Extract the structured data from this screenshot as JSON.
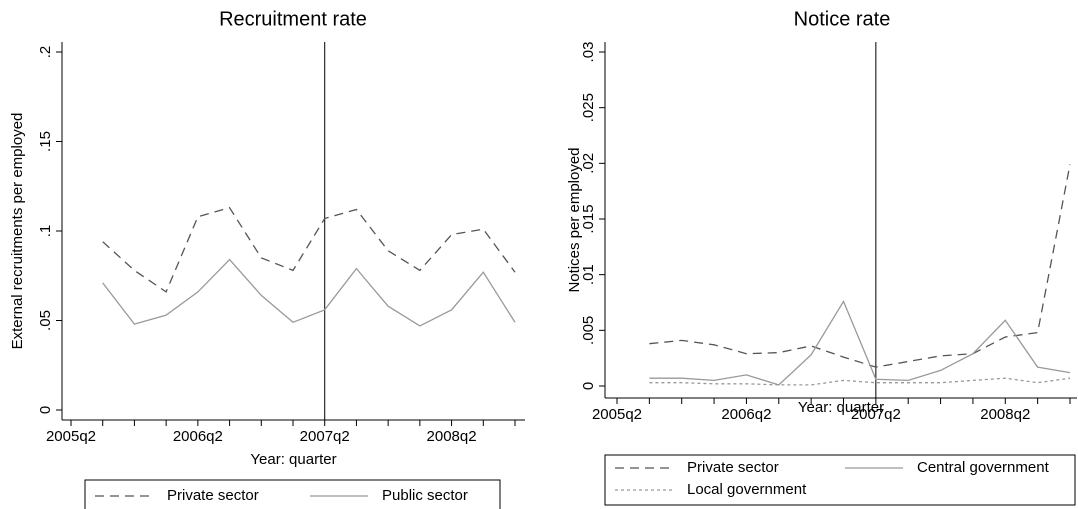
{
  "chart_data": [
    {
      "type": "line",
      "title": "Recruitment rate",
      "x_label": "Year: quarter",
      "y_label": "External recruitments per employed",
      "categories": [
        "2005q2",
        null,
        null,
        null,
        "2006q2",
        null,
        null,
        null,
        "2007q2",
        null,
        null,
        null,
        "2008q2",
        null,
        null
      ],
      "series": [
        {
          "name": "Private sector",
          "color": "#555555",
          "dash": "dashed",
          "values": [
            null,
            0.094,
            0.078,
            0.066,
            0.108,
            0.113,
            0.085,
            0.078,
            0.107,
            0.112,
            0.089,
            0.078,
            0.098,
            0.101,
            0.077
          ]
        },
        {
          "name": "Public sector",
          "color": "#999999",
          "dash": "solid",
          "values": [
            null,
            0.071,
            0.048,
            0.053,
            0.066,
            0.084,
            0.064,
            0.049,
            0.056,
            0.079,
            0.058,
            0.047,
            0.056,
            0.077,
            0.049
          ]
        }
      ],
      "ylim": [
        0,
        0.2
      ],
      "yticks": [
        0,
        {
          "value": 0.05,
          "label": ".05"
        },
        {
          "value": 0.1,
          "label": ".1"
        },
        {
          "value": 0.15,
          "label": ".15"
        },
        {
          "value": 0.2,
          "label": ".2"
        }
      ],
      "reference_line_at": "2007q2"
    },
    {
      "type": "line",
      "title": "Notice rate",
      "x_label": "Year: quarter",
      "y_label": "Notices per employed",
      "categories": [
        "2005q2",
        null,
        null,
        null,
        "2006q2",
        null,
        null,
        null,
        "2007q2",
        null,
        null,
        null,
        "2008q2",
        null,
        null
      ],
      "series": [
        {
          "name": "Private sector",
          "color": "#555555",
          "dash": "dashed",
          "values": [
            null,
            0.0038,
            0.0041,
            0.0037,
            0.0029,
            0.003,
            0.0036,
            0.0026,
            0.0017,
            0.0022,
            0.0027,
            0.0029,
            0.0044,
            0.0048,
            0.0199
          ]
        },
        {
          "name": "Central government",
          "color": "#999999",
          "dash": "solid",
          "values": [
            null,
            0.0007,
            0.0007,
            0.0005,
            0.001,
            0.0001,
            0.0028,
            0.0076,
            0.0006,
            0.0005,
            0.0014,
            0.0029,
            0.0059,
            0.0017,
            0.0012
          ]
        },
        {
          "name": "Local government",
          "color": "#999999",
          "dash": "dotted",
          "values": [
            null,
            0.0003,
            0.0003,
            0.0002,
            0.0002,
            0.0001,
            0.0001,
            0.0005,
            0.0003,
            0.0003,
            0.0003,
            0.0005,
            0.0007,
            0.0003,
            0.0007
          ]
        }
      ],
      "ylim": [
        0,
        0.03
      ],
      "yticks": [
        0,
        {
          "value": 0.005,
          "label": ".005"
        },
        {
          "value": 0.01,
          "label": ".01"
        },
        {
          "value": 0.015,
          "label": ".015"
        },
        {
          "value": 0.02,
          "label": ".02"
        },
        {
          "value": 0.025,
          "label": ".025"
        },
        {
          "value": 0.03,
          "label": ".03"
        }
      ],
      "reference_line_at": "2007q2"
    }
  ]
}
